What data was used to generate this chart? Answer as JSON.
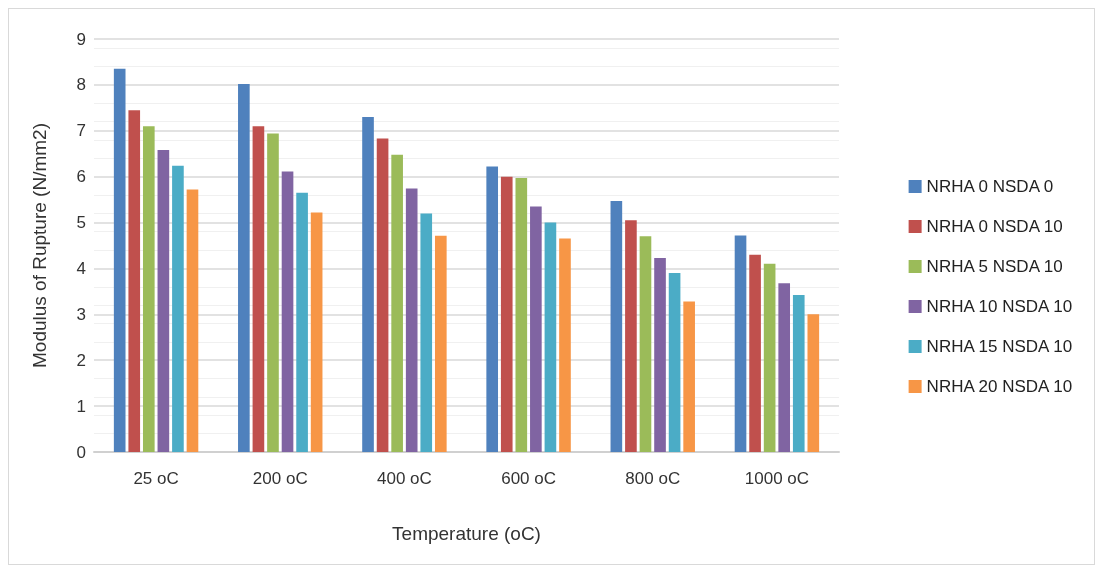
{
  "chart_data": {
    "type": "bar",
    "xlabel": "Temperature (oC)",
    "ylabel": "Modulus of Rupture (N/mm2)",
    "categories": [
      "25 oC",
      "200 oC",
      "400 oC",
      "600 oC",
      "800 oC",
      "1000 oC"
    ],
    "series": [
      {
        "name": "NRHA 0 NSDA 0",
        "color": "#4f81bd",
        "values": [
          8.35,
          8.02,
          7.3,
          6.22,
          5.47,
          4.72
        ]
      },
      {
        "name": "NRHA 0 NSDA 10",
        "color": "#c0504d",
        "values": [
          7.45,
          7.1,
          6.83,
          6.0,
          5.05,
          4.3
        ]
      },
      {
        "name": "NRHA 5 NSDA 10",
        "color": "#9bbb59",
        "values": [
          7.1,
          6.94,
          6.48,
          5.97,
          4.7,
          4.1
        ]
      },
      {
        "name": "NRHA 10 NSDA 10",
        "color": "#8064a2",
        "values": [
          6.58,
          6.11,
          5.74,
          5.35,
          4.23,
          3.68
        ]
      },
      {
        "name": "NRHA 15 NSDA 10",
        "color": "#4bacc6",
        "values": [
          6.24,
          5.65,
          5.2,
          5.0,
          3.9,
          3.42
        ]
      },
      {
        "name": "NRHA 20 NSDA 10",
        "color": "#f79646",
        "values": [
          5.72,
          5.22,
          4.71,
          4.65,
          3.28,
          3.0
        ]
      }
    ],
    "ylim": [
      0,
      9
    ],
    "yticks": [
      0,
      1,
      2,
      3,
      4,
      5,
      6,
      7,
      8,
      9
    ],
    "grid": "y",
    "legend": "right"
  }
}
